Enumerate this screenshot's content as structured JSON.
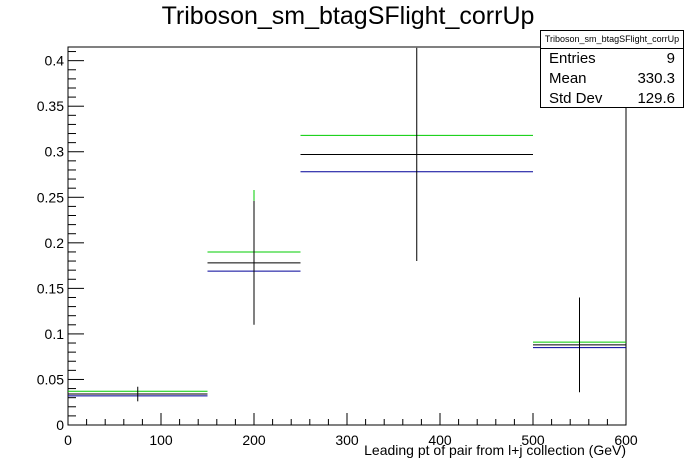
{
  "title": "Triboson_sm_btagSFlight_corrUp",
  "stats_box": {
    "name": "Triboson_sm_btagSFlight_corrUp",
    "rows": [
      {
        "label": "Entries",
        "value": "9"
      },
      {
        "label": "Mean",
        "value": "330.3"
      },
      {
        "label": "Std Dev",
        "value": "129.6"
      }
    ]
  },
  "chart_data": {
    "type": "histogram",
    "title": "Triboson_sm_btagSFlight_corrUp",
    "xlabel": "Leading pt of pair from l+j collection (GeV)",
    "ylabel": "",
    "xlim": [
      0,
      600
    ],
    "ylim": [
      0,
      0.415
    ],
    "xticks": [
      0,
      100,
      200,
      300,
      400,
      500,
      600
    ],
    "xtick_labels": [
      "0",
      "100",
      "200",
      "300",
      "400",
      "500",
      "600"
    ],
    "yticks": [
      0,
      0.05,
      0.1,
      0.15,
      0.2,
      0.25,
      0.3,
      0.35,
      0.4
    ],
    "ytick_labels": [
      "0",
      "0.05",
      "0.1",
      "0.15",
      "0.2",
      "0.25",
      "0.3",
      "0.35",
      "0.4"
    ],
    "bin_edges": [
      0,
      150,
      250,
      500,
      600
    ],
    "nominal": {
      "color": "#000000",
      "values": [
        0.034,
        0.178,
        0.297,
        0.088
      ],
      "errors": [
        0.008,
        0.068,
        0.117,
        0.052
      ]
    },
    "series": [
      {
        "color": "#00cc00",
        "values": [
          0.037,
          0.19,
          0.318,
          0.091
        ]
      },
      {
        "color": "#000099",
        "values": [
          0.032,
          0.169,
          0.278,
          0.085
        ]
      }
    ],
    "error_bar_upper_extra": [
      0,
      0.012,
      0,
      0
    ]
  }
}
